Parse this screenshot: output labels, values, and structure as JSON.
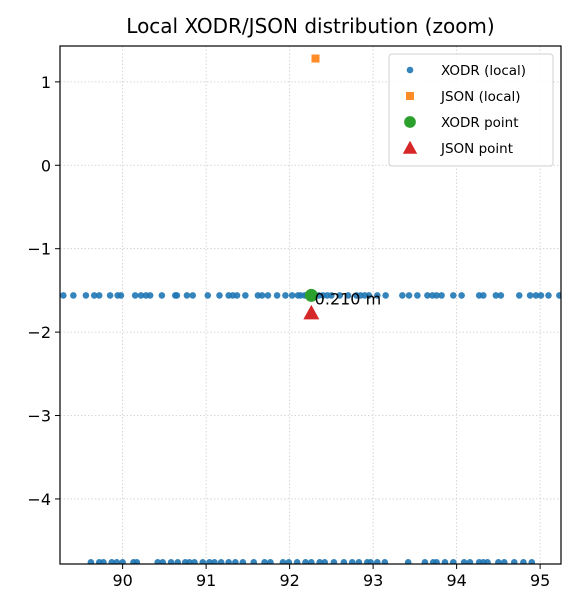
{
  "chart_data": {
    "type": "scatter",
    "title": "Local XODR/JSON distribution (zoom)",
    "xlabel": "",
    "ylabel": "",
    "xlim": [
      89.25,
      95.25
    ],
    "ylim": [
      -4.78,
      1.43
    ],
    "x_ticks": [
      90,
      91,
      92,
      93,
      94,
      95
    ],
    "y_ticks": [
      1,
      0,
      -1,
      -2,
      -3,
      -4
    ],
    "x_tick_labels": [
      "90",
      "91",
      "92",
      "93",
      "94",
      "95"
    ],
    "y_tick_labels": [
      "1",
      "0",
      "−1",
      "−2",
      "−3",
      "−4"
    ],
    "grid": true,
    "legend_position": "top-right",
    "series": [
      {
        "name": "XODR (local)",
        "marker": "circle",
        "color": "#1f77b4",
        "points": [
          [
            89.29,
            -1.56
          ],
          [
            89.41,
            -1.56
          ],
          [
            89.56,
            -1.56
          ],
          [
            89.66,
            -1.56
          ],
          [
            89.72,
            -1.56
          ],
          [
            89.85,
            -1.56
          ],
          [
            89.94,
            -1.56
          ],
          [
            89.98,
            -1.56
          ],
          [
            90.15,
            -1.56
          ],
          [
            90.22,
            -1.56
          ],
          [
            90.28,
            -1.56
          ],
          [
            90.33,
            -1.56
          ],
          [
            90.47,
            -1.56
          ],
          [
            90.63,
            -1.56
          ],
          [
            90.65,
            -1.56
          ],
          [
            90.77,
            -1.56
          ],
          [
            90.84,
            -1.56
          ],
          [
            91.02,
            -1.56
          ],
          [
            91.16,
            -1.56
          ],
          [
            91.27,
            -1.56
          ],
          [
            91.32,
            -1.56
          ],
          [
            91.37,
            -1.56
          ],
          [
            91.47,
            -1.56
          ],
          [
            91.62,
            -1.56
          ],
          [
            91.67,
            -1.56
          ],
          [
            91.74,
            -1.56
          ],
          [
            91.85,
            -1.56
          ],
          [
            91.95,
            -1.56
          ],
          [
            92.03,
            -1.56
          ],
          [
            92.1,
            -1.56
          ],
          [
            92.13,
            -1.56
          ],
          [
            92.18,
            -1.56
          ],
          [
            92.21,
            -1.56
          ],
          [
            92.25,
            -1.56
          ],
          [
            92.35,
            -1.56
          ],
          [
            92.4,
            -1.56
          ],
          [
            92.45,
            -1.56
          ],
          [
            92.5,
            -1.56
          ],
          [
            92.6,
            -1.56
          ],
          [
            92.7,
            -1.56
          ],
          [
            92.8,
            -1.56
          ],
          [
            92.85,
            -1.56
          ],
          [
            92.9,
            -1.56
          ],
          [
            92.95,
            -1.56
          ],
          [
            93.05,
            -1.56
          ],
          [
            93.15,
            -1.56
          ],
          [
            93.35,
            -1.56
          ],
          [
            93.43,
            -1.56
          ],
          [
            93.53,
            -1.56
          ],
          [
            93.65,
            -1.56
          ],
          [
            93.71,
            -1.56
          ],
          [
            93.76,
            -1.56
          ],
          [
            93.82,
            -1.56
          ],
          [
            93.96,
            -1.56
          ],
          [
            94.06,
            -1.56
          ],
          [
            94.27,
            -1.56
          ],
          [
            94.32,
            -1.56
          ],
          [
            94.47,
            -1.56
          ],
          [
            94.53,
            -1.56
          ],
          [
            94.75,
            -1.56
          ],
          [
            94.88,
            -1.56
          ],
          [
            94.95,
            -1.56
          ],
          [
            95.01,
            -1.56
          ],
          [
            95.1,
            -1.56
          ],
          [
            95.23,
            -1.56
          ],
          [
            89.62,
            -4.76
          ],
          [
            89.72,
            -4.76
          ],
          [
            89.77,
            -4.76
          ],
          [
            89.87,
            -4.76
          ],
          [
            89.93,
            -4.76
          ],
          [
            90.0,
            -4.76
          ],
          [
            90.13,
            -4.76
          ],
          [
            90.17,
            -4.76
          ],
          [
            90.42,
            -4.76
          ],
          [
            90.48,
            -4.76
          ],
          [
            90.58,
            -4.76
          ],
          [
            90.66,
            -4.76
          ],
          [
            90.75,
            -4.76
          ],
          [
            90.8,
            -4.76
          ],
          [
            90.86,
            -4.76
          ],
          [
            90.96,
            -4.76
          ],
          [
            91.04,
            -4.76
          ],
          [
            91.1,
            -4.76
          ],
          [
            91.18,
            -4.76
          ],
          [
            91.27,
            -4.76
          ],
          [
            91.35,
            -4.76
          ],
          [
            91.44,
            -4.76
          ],
          [
            91.57,
            -4.76
          ],
          [
            91.7,
            -4.76
          ],
          [
            91.77,
            -4.76
          ],
          [
            91.92,
            -4.76
          ],
          [
            91.99,
            -4.76
          ],
          [
            92.09,
            -4.76
          ],
          [
            92.19,
            -4.76
          ],
          [
            92.26,
            -4.76
          ],
          [
            92.36,
            -4.76
          ],
          [
            92.42,
            -4.76
          ],
          [
            92.53,
            -4.76
          ],
          [
            92.65,
            -4.76
          ],
          [
            92.75,
            -4.76
          ],
          [
            92.83,
            -4.76
          ],
          [
            92.93,
            -4.76
          ],
          [
            92.97,
            -4.76
          ],
          [
            93.05,
            -4.76
          ],
          [
            93.14,
            -4.76
          ],
          [
            93.42,
            -4.76
          ],
          [
            93.62,
            -4.76
          ],
          [
            93.72,
            -4.76
          ],
          [
            93.76,
            -4.76
          ],
          [
            93.86,
            -4.76
          ],
          [
            93.96,
            -4.76
          ],
          [
            94.09,
            -4.76
          ],
          [
            94.16,
            -4.76
          ],
          [
            94.27,
            -4.76
          ],
          [
            94.32,
            -4.76
          ],
          [
            94.37,
            -4.76
          ],
          [
            94.5,
            -4.76
          ],
          [
            94.57,
            -4.76
          ],
          [
            94.69,
            -4.76
          ],
          [
            94.8,
            -4.76
          ],
          [
            94.9,
            -4.76
          ]
        ]
      },
      {
        "name": "JSON (local)",
        "marker": "square",
        "color": "#ff7f0e",
        "points": [
          [
            92.31,
            1.28
          ]
        ]
      },
      {
        "name": "XODR point",
        "marker": "circle-large",
        "color": "#2ca02c",
        "points": [
          [
            92.26,
            -1.56
          ]
        ]
      },
      {
        "name": "JSON point",
        "marker": "triangle",
        "color": "#d62728",
        "points": [
          [
            92.26,
            -1.77
          ]
        ]
      }
    ],
    "annotations": [
      {
        "text": "0.210 m",
        "x": 92.3,
        "y": -1.6
      }
    ]
  }
}
